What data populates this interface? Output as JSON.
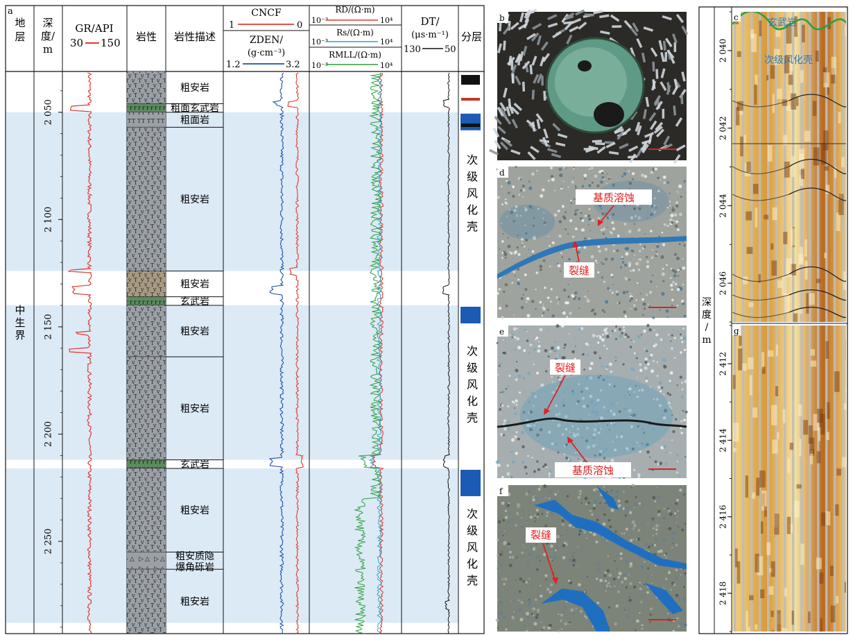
{
  "log_panel": {
    "panel_label": "a",
    "headers": {
      "strata": "地层",
      "depth_label": "深度/m",
      "gr_title": "GR/API",
      "gr_min": "30",
      "gr_max": "150",
      "lithology": "岩性",
      "lith_desc": "岩性描述",
      "cncf_title": "CNCF",
      "cncf_min": "1",
      "cncf_max": "0",
      "zden_title": "ZDEN/",
      "zden_unit": "(g·cm⁻³)",
      "zden_min": "1.2",
      "zden_max": "3.2",
      "rd_title": "RD/(Ω·m)",
      "rs_title": "Rs/(Ω·m)",
      "rmll_title": "RMLL/(Ω·m)",
      "res_min": "10⁻³",
      "res_max": "10⁴",
      "dt_title": "DT/",
      "dt_unit": "(μs·m⁻¹)",
      "dt_min": "130",
      "dt_max": "50",
      "layer": "分层"
    },
    "stratum": "中生界",
    "depth_axis": {
      "ticks": [
        "2 050",
        "2 100",
        "2 150",
        "2 200",
        "2 250"
      ],
      "range_m": [
        2031,
        2293
      ]
    },
    "lithology_units": [
      {
        "desc": "粗安岩",
        "top_m": 2031,
        "base_m": 2046,
        "pattern": "trachyandesite"
      },
      {
        "desc": "粗面玄武岩",
        "top_m": 2046,
        "base_m": 2050,
        "pattern": "basalt"
      },
      {
        "desc": "粗面岩",
        "top_m": 2050,
        "base_m": 2057,
        "pattern": "trachyte"
      },
      {
        "desc": "粗安岩",
        "top_m": 2057,
        "base_m": 2124,
        "pattern": "trachyandesite"
      },
      {
        "desc": "粗安岩",
        "top_m": 2124,
        "base_m": 2136,
        "pattern": "trachyandesite"
      },
      {
        "desc": "玄武岩",
        "top_m": 2136,
        "base_m": 2140,
        "pattern": "basalt"
      },
      {
        "desc": "粗安岩",
        "top_m": 2140,
        "base_m": 2164,
        "pattern": "trachyandesite"
      },
      {
        "desc": "粗安岩",
        "top_m": 2164,
        "base_m": 2212,
        "pattern": "trachyandesite"
      },
      {
        "desc": "玄武岩",
        "top_m": 2212,
        "base_m": 2216,
        "pattern": "basalt"
      },
      {
        "desc": "粗安岩",
        "top_m": 2216,
        "base_m": 2255,
        "pattern": "trachyandesite"
      },
      {
        "desc": "粗安质隐爆角砾岩",
        "top_m": 2255,
        "base_m": 2263,
        "pattern": "breccia"
      },
      {
        "desc": "粗安岩",
        "top_m": 2263,
        "base_m": 2293,
        "pattern": "trachyandesite"
      }
    ],
    "weathered_zones": [
      {
        "label": "次级风化壳",
        "top_m": 2050,
        "base_m": 2124
      },
      {
        "label": "次级风化壳",
        "top_m": 2140,
        "base_m": 2212
      },
      {
        "label": "次级风化壳",
        "top_m": 2216,
        "base_m": 2288
      }
    ],
    "colors": {
      "gr": "#e03a2e",
      "cncf": "#e03a2e",
      "zden": "#1f4fa8",
      "rd": "#e03a2e",
      "rs": "#2aa6c8",
      "rmll": "#2e9e3e",
      "dt": "#111111",
      "zone_band": "#dceaf6",
      "layer_bar": "#1c5bb5",
      "lith_gray": "#9aa0a6",
      "lith_basalt": "#5b8a5e",
      "lith_brown": "#a89a82"
    }
  },
  "micrographs": [
    {
      "label": "b",
      "annotations": []
    },
    {
      "label": "d",
      "annotations": [
        "基质溶蚀",
        "裂缝"
      ]
    },
    {
      "label": "e",
      "annotations": [
        "裂缝",
        "基质溶蚀"
      ]
    },
    {
      "label": "f",
      "annotations": [
        "裂缝"
      ]
    }
  ],
  "image_log": {
    "depth_label": "深度/m",
    "panel_c": {
      "label": "c",
      "annotations": [
        "玄武岩",
        "次级风化壳"
      ],
      "ticks": [
        "2 040",
        "2 042",
        "2 044",
        "2 046"
      ],
      "range_m": [
        2039,
        2047
      ]
    },
    "panel_g": {
      "label": "g",
      "ticks": [
        "2 412",
        "2 414",
        "2 416",
        "2 418"
      ],
      "range_m": [
        2411,
        2419
      ]
    }
  }
}
